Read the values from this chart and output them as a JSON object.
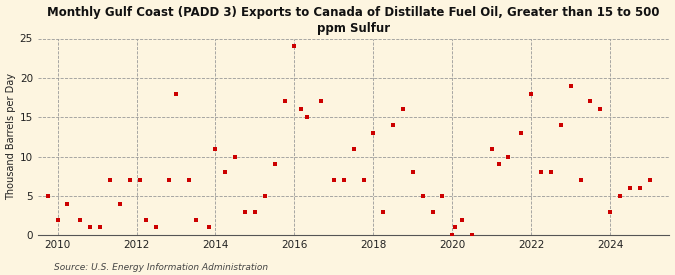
{
  "title": "Monthly Gulf Coast (PADD 3) Exports to Canada of Distillate Fuel Oil, Greater than 15 to 500\nppm Sulfur",
  "ylabel": "Thousand Barrels per Day",
  "source": "Source: U.S. Energy Information Administration",
  "background_color": "#fdf5e0",
  "plot_bg_color": "#fdf5e0",
  "marker_color": "#cc0000",
  "ylim": [
    0,
    25
  ],
  "yticks": [
    0,
    5,
    10,
    15,
    20,
    25
  ],
  "xlim": [
    2009.5,
    2025.5
  ],
  "xticks": [
    2010,
    2012,
    2014,
    2016,
    2018,
    2020,
    2022,
    2024
  ],
  "data_x": [
    2009.75,
    2010.0,
    2010.25,
    2010.58,
    2010.83,
    2011.08,
    2011.33,
    2011.58,
    2011.83,
    2012.08,
    2012.25,
    2012.5,
    2012.83,
    2013.0,
    2013.33,
    2013.5,
    2013.83,
    2014.0,
    2014.25,
    2014.5,
    2014.75,
    2015.0,
    2015.25,
    2015.5,
    2015.75,
    2016.0,
    2016.17,
    2016.33,
    2016.67,
    2017.0,
    2017.25,
    2017.5,
    2017.75,
    2018.0,
    2018.25,
    2018.5,
    2018.75,
    2019.0,
    2019.25,
    2019.5,
    2019.75,
    2020.0,
    2020.08,
    2020.25,
    2020.5,
    2021.0,
    2021.17,
    2021.42,
    2021.75,
    2022.0,
    2022.25,
    2022.5,
    2022.75,
    2023.0,
    2023.25,
    2023.5,
    2023.75,
    2024.0,
    2024.25,
    2024.5,
    2024.75,
    2025.0
  ],
  "data_y": [
    5.0,
    2.0,
    4.0,
    2.0,
    1.0,
    1.0,
    7.0,
    4.0,
    7.0,
    7.0,
    2.0,
    1.0,
    7.0,
    18.0,
    7.0,
    2.0,
    1.0,
    11.0,
    8.0,
    10.0,
    3.0,
    3.0,
    5.0,
    9.0,
    17.0,
    24.0,
    16.0,
    15.0,
    17.0,
    7.0,
    7.0,
    11.0,
    7.0,
    13.0,
    3.0,
    14.0,
    16.0,
    8.0,
    5.0,
    3.0,
    5.0,
    0.0,
    1.0,
    2.0,
    0.0,
    11.0,
    9.0,
    10.0,
    13.0,
    18.0,
    8.0,
    8.0,
    14.0,
    19.0,
    7.0,
    17.0,
    16.0,
    3.0,
    5.0,
    6.0,
    6.0,
    7.0
  ]
}
